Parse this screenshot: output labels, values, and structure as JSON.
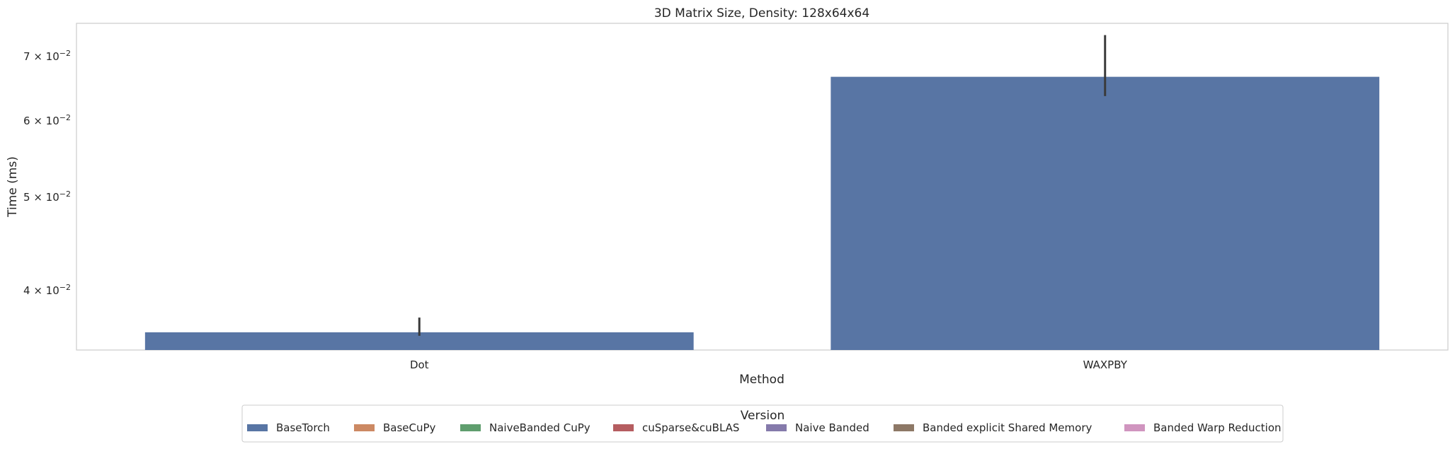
{
  "chart_data": {
    "type": "bar",
    "title": "3D Matrix Size, Density: 128x64x64",
    "xlabel": "Method",
    "ylabel": "Time (ms)",
    "yscale": "log",
    "ylim": [
      0.0347,
      0.0758
    ],
    "yticks": [
      {
        "value": 0.04,
        "mantissa": "4",
        "exponent": "−2"
      },
      {
        "value": 0.05,
        "mantissa": "5",
        "exponent": "−2"
      },
      {
        "value": 0.06,
        "mantissa": "6",
        "exponent": "−2"
      },
      {
        "value": 0.07,
        "mantissa": "7",
        "exponent": "−2"
      }
    ],
    "tick_times_symbol": "×",
    "tick_base": "10",
    "categories": [
      "Dot",
      "WAXPBY"
    ],
    "series": [
      {
        "name": "BaseTorch",
        "color": "#5875a4",
        "values": [
          0.0362,
          0.0667
        ],
        "err_low": [
          0.0359,
          0.0637
        ],
        "err_high": [
          0.0375,
          0.0737
        ]
      },
      {
        "name": "BaseCuPy",
        "color": "#cc8963",
        "values": [
          null,
          null
        ]
      },
      {
        "name": "NaiveBanded CuPy",
        "color": "#5f9e6e",
        "values": [
          null,
          null
        ]
      },
      {
        "name": "cuSparse&cuBLAS",
        "color": "#b55d60",
        "values": [
          null,
          null
        ]
      },
      {
        "name": "Naive Banded",
        "color": "#857aab",
        "values": [
          null,
          null
        ]
      },
      {
        "name": "Banded explicit Shared Memory",
        "color": "#8d7866",
        "values": [
          null,
          null
        ]
      },
      {
        "name": "Banded Warp Reduction",
        "color": "#d095bf",
        "values": [
          null,
          null
        ]
      }
    ],
    "grid": false,
    "legend_title": "Version",
    "legend_position": "bottom-center"
  }
}
